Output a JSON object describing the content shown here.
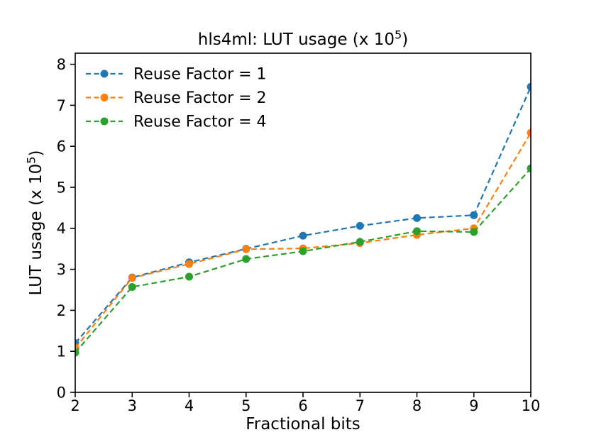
{
  "chart_data": {
    "type": "line",
    "title": "hls4ml: LUT usage (x 10⁵)",
    "xlabel": "Fractional bits",
    "ylabel": "LUT usage (x 10⁵)",
    "x": [
      2,
      3,
      4,
      5,
      6,
      7,
      8,
      9,
      10
    ],
    "series": [
      {
        "name": "Reuse Factor = 1",
        "color": "#1f77b4",
        "values": [
          1.2,
          2.8,
          3.17,
          3.5,
          3.82,
          4.06,
          4.25,
          4.32,
          7.45
        ]
      },
      {
        "name": "Reuse Factor = 2",
        "color": "#ff7f0e",
        "values": [
          1.08,
          2.79,
          3.13,
          3.49,
          3.51,
          3.64,
          3.84,
          4.0,
          6.33
        ]
      },
      {
        "name": "Reuse Factor = 4",
        "color": "#2ca02c",
        "values": [
          0.97,
          2.57,
          2.82,
          3.25,
          3.44,
          3.67,
          3.93,
          3.91,
          5.46
        ]
      }
    ],
    "xticks": [
      2,
      3,
      4,
      5,
      6,
      7,
      8,
      9,
      10
    ],
    "yticks": [
      0,
      1,
      2,
      3,
      4,
      5,
      6,
      7,
      8
    ],
    "xlim": [
      2,
      10
    ],
    "ylim": [
      0,
      8.27
    ],
    "grid": false,
    "legend_position": "upper left",
    "line_style": "dashed",
    "marker": "circle",
    "axis_color": "#000000",
    "background_color": "#ffffff"
  }
}
